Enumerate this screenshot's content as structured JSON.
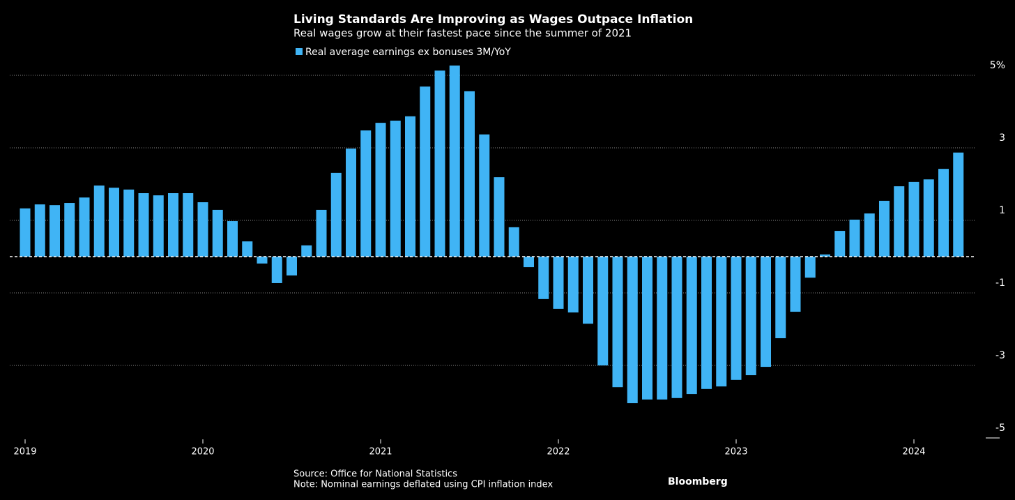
{
  "chart_data": {
    "type": "bar",
    "title": "Living Standards Are Improving as Wages Outpace Inflation",
    "subtitle": "Real wages grow at their fastest pace since the summer of 2021",
    "categories": [
      "2019",
      null,
      null,
      null,
      null,
      null,
      null,
      null,
      null,
      null,
      null,
      null,
      "2020",
      null,
      null,
      null,
      null,
      null,
      null,
      null,
      null,
      null,
      null,
      null,
      "2021",
      null,
      null,
      null,
      null,
      null,
      null,
      null,
      null,
      null,
      null,
      null,
      "2022",
      null,
      null,
      null,
      null,
      null,
      null,
      null,
      null,
      null,
      null,
      null,
      "2023",
      null,
      null,
      null,
      null,
      null,
      null,
      null,
      null,
      null,
      null,
      null,
      "2024",
      null,
      null,
      null
    ],
    "series": [
      {
        "name": "Real average earnings ex bonuses 3M/YoY",
        "color": "#40b4f5",
        "values": [
          1.33,
          1.44,
          1.42,
          1.48,
          1.63,
          1.96,
          1.9,
          1.85,
          1.75,
          1.69,
          1.75,
          1.75,
          1.5,
          1.29,
          0.98,
          0.42,
          -0.19,
          -0.73,
          -0.52,
          0.31,
          1.29,
          2.31,
          2.98,
          3.48,
          3.69,
          3.75,
          3.87,
          4.69,
          5.13,
          5.27,
          4.56,
          3.37,
          2.19,
          0.81,
          -0.29,
          -1.17,
          -1.44,
          -1.54,
          -1.85,
          -3.0,
          -3.6,
          -4.04,
          -3.94,
          -3.94,
          -3.9,
          -3.79,
          -3.65,
          -3.58,
          -3.4,
          -3.27,
          -3.04,
          -2.25,
          -1.52,
          -0.58,
          0.06,
          0.71,
          1.02,
          1.19,
          1.54,
          1.94,
          2.06,
          2.13,
          2.42,
          2.87
        ]
      }
    ],
    "ylim": [
      -5,
      5.2
    ],
    "yticks": [
      {
        "value": 5,
        "label": "5%"
      },
      3,
      1,
      -1,
      -3,
      -5
    ],
    "grid": true,
    "source": "Source: Office for National Statistics",
    "note": "Note: Nominal earnings deflated using CPI inflation index",
    "brand": "Bloomberg"
  }
}
